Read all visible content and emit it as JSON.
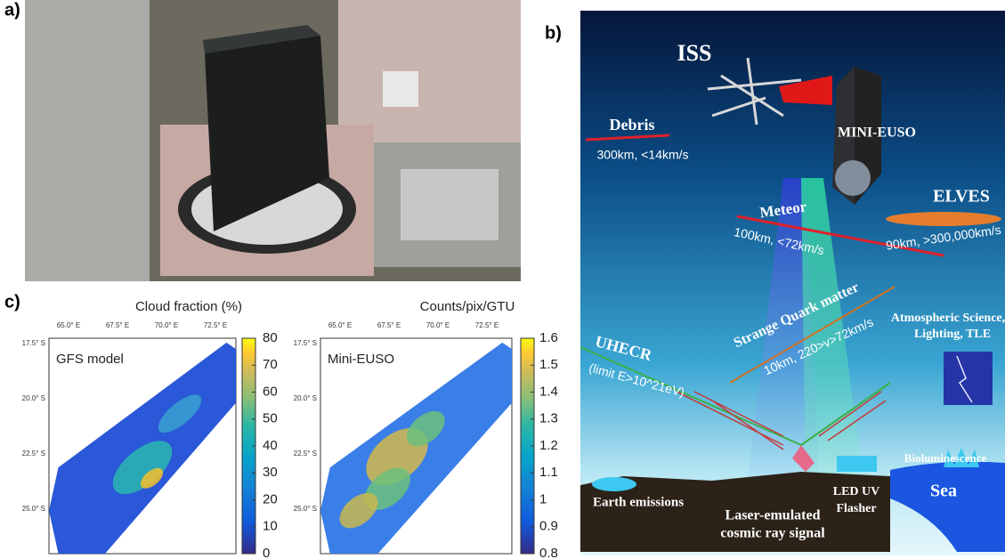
{
  "panels": {
    "a": {
      "label": "a)"
    },
    "b": {
      "label": "b)",
      "iss": "ISS",
      "debris": "Debris",
      "debris_info": "300km, <14km/s",
      "instrument": "MINI-EUSO",
      "meteor": "Meteor",
      "meteor_info": "100km, <72km/s",
      "elves": "ELVES",
      "elves_info": "90km, >300,000km/s",
      "sqm": "Strange Quark matter",
      "sqm_info": "10km, 220>v>72km/s",
      "uhecr": "UHECR",
      "uhecr_info": "(limit E>10^21eV)",
      "atmos": [
        "Atmospheric Science,",
        "Lighting, TLE"
      ],
      "biolum": "Bioluminescence",
      "sea": "Sea",
      "earth": "Earth emissions",
      "laser": [
        "Laser-emulated",
        "cosmic ray signal"
      ],
      "led": [
        "LED UV",
        "Flasher"
      ]
    },
    "c": {
      "label": "c)",
      "xlabels": [
        "65.0° E",
        "67.5° E",
        "70.0° E",
        "72.5° E"
      ],
      "ylabels": [
        "17.5° S",
        "20.0° S",
        "22.5° S",
        "25.0° S"
      ],
      "maps": [
        {
          "name": "GFS model",
          "colorbar_title": "Cloud fraction (%)",
          "lim": [
            0,
            80
          ],
          "ticks": [
            0,
            10,
            20,
            30,
            40,
            50,
            60,
            70,
            80
          ]
        },
        {
          "name": "Mini-EUSO",
          "colorbar_title": "Counts/pix/GTU",
          "lim": [
            0.8,
            1.6
          ],
          "ticks": [
            0.8,
            0.9,
            1,
            1.1,
            1.2,
            1.3,
            1.4,
            1.5,
            1.6
          ]
        }
      ]
    }
  }
}
